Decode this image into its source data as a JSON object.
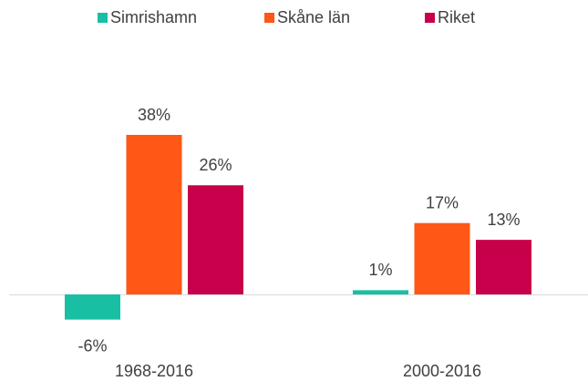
{
  "chart_data": {
    "type": "bar",
    "categories": [
      "1968-2016",
      "2000-2016"
    ],
    "series": [
      {
        "name": "Simrishamn",
        "color": "#19bfa3",
        "values": [
          -6,
          1
        ],
        "value_labels": [
          "-6%",
          "1%"
        ]
      },
      {
        "name": "Skåne län",
        "color": "#fe5716",
        "values": [
          38,
          17
        ],
        "value_labels": [
          "38%",
          "17%"
        ]
      },
      {
        "name": "Riket",
        "color": "#c8004b",
        "values": [
          26,
          13
        ],
        "value_labels": [
          "26%",
          "13%"
        ]
      }
    ],
    "legend": "top"
  }
}
